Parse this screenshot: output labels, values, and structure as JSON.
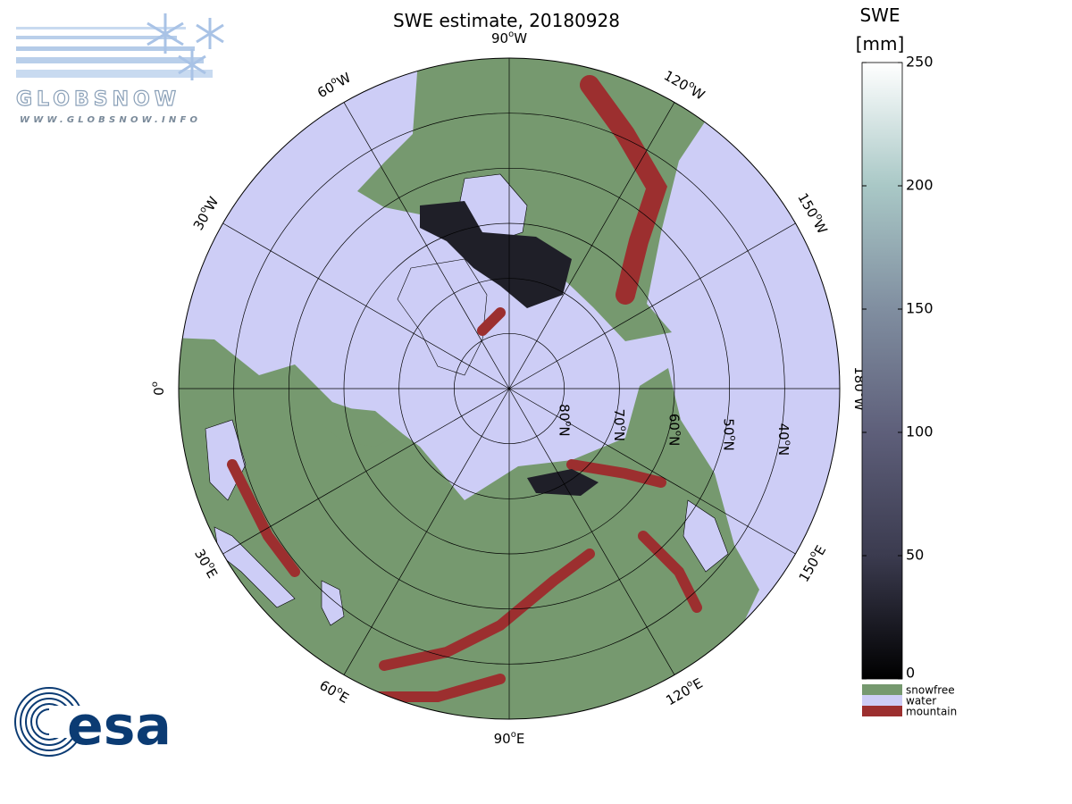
{
  "title": "SWE estimate, 20180928",
  "logo": {
    "name": "GLOBSNOW",
    "url": "WWW.GLOBSNOW.INFO"
  },
  "agency": "esa",
  "lat_range": [
    30,
    90
  ],
  "meridians": [
    {
      "lon": -90,
      "label": [
        "90",
        "o",
        "W"
      ]
    },
    {
      "lon": -120,
      "label": [
        "120",
        "o",
        "W"
      ]
    },
    {
      "lon": -150,
      "label": [
        "150",
        "o",
        "W"
      ]
    },
    {
      "lon": 180,
      "label": [
        "180",
        "o",
        "W"
      ]
    },
    {
      "lon": 150,
      "label": [
        "150",
        "o",
        "E"
      ]
    },
    {
      "lon": 120,
      "label": [
        "120",
        "o",
        "E"
      ]
    },
    {
      "lon": 90,
      "label": [
        "90",
        "o",
        "E"
      ]
    },
    {
      "lon": 60,
      "label": [
        "60",
        "o",
        "E"
      ]
    },
    {
      "lon": 30,
      "label": [
        "30",
        "o",
        "E"
      ]
    },
    {
      "lon": 0,
      "label": [
        "0",
        "o",
        ""
      ]
    },
    {
      "lon": -30,
      "label": [
        "30",
        "o",
        "W"
      ]
    },
    {
      "lon": -60,
      "label": [
        "60",
        "o",
        "W"
      ]
    }
  ],
  "parallels": [
    {
      "lat": 80,
      "label": [
        "80",
        "o",
        "N"
      ]
    },
    {
      "lat": 70,
      "label": [
        "70",
        "o",
        "N"
      ]
    },
    {
      "lat": 60,
      "label": [
        "60",
        "o",
        "N"
      ]
    },
    {
      "lat": 50,
      "label": [
        "50",
        "o",
        "N"
      ]
    },
    {
      "lat": 40,
      "label": [
        "40",
        "o",
        "N"
      ]
    }
  ],
  "colorbar": {
    "label": "SWE",
    "unit": "[mm]",
    "range": [
      0,
      250
    ],
    "ticks": [
      0,
      50,
      100,
      150,
      200,
      250
    ],
    "colors": [
      "#000000",
      "#3b3b4f",
      "#5e5f7a",
      "#808ea0",
      "#a9c8c6",
      "#ffffff"
    ]
  },
  "legend": [
    {
      "label": "snowfree",
      "color": "#76996f"
    },
    {
      "label": "water",
      "color": "#cdcdf6"
    },
    {
      "label": "mountain",
      "color": "#9c2f2f"
    }
  ]
}
